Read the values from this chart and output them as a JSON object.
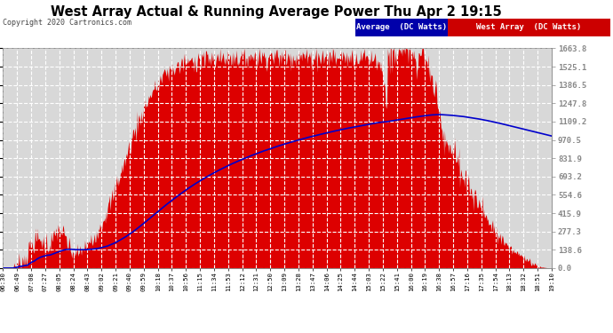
{
  "title": "West Array Actual & Running Average Power Thu Apr 2 19:15",
  "copyright": "Copyright 2020 Cartronics.com",
  "legend_avg": "Average  (DC Watts)",
  "legend_west": "West Array  (DC Watts)",
  "ymax": 1663.8,
  "ymin": 0.0,
  "yticks": [
    0.0,
    138.6,
    277.3,
    415.9,
    554.6,
    693.2,
    831.9,
    970.5,
    1109.2,
    1247.8,
    1386.5,
    1525.1,
    1663.8
  ],
  "bg_color": "#ffffff",
  "plot_bg_color": "#d8d8d8",
  "grid_color": "#ffffff",
  "fill_color": "#dd0000",
  "line_color": "#0000cc",
  "title_color": "#000000",
  "tick_color": "#000000",
  "legend_avg_bg": "#0000aa",
  "legend_west_bg": "#cc0000",
  "x_labels": [
    "06:30",
    "06:49",
    "07:08",
    "07:27",
    "08:05",
    "08:24",
    "08:43",
    "09:02",
    "09:21",
    "09:40",
    "09:59",
    "10:18",
    "10:37",
    "10:56",
    "11:15",
    "11:34",
    "11:53",
    "12:12",
    "12:31",
    "12:50",
    "13:09",
    "13:28",
    "13:47",
    "14:06",
    "14:25",
    "14:44",
    "15:03",
    "15:22",
    "15:41",
    "16:00",
    "16:19",
    "16:38",
    "16:57",
    "17:16",
    "17:35",
    "17:54",
    "18:13",
    "18:32",
    "18:51",
    "19:10"
  ],
  "n_points": 800
}
